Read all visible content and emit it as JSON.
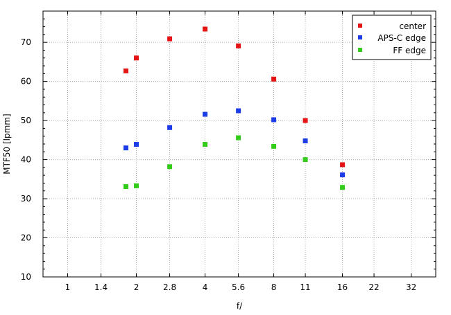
{
  "chart_data": {
    "type": "scatter",
    "xscale": "log",
    "xlabel": "f/",
    "ylabel": "MTF50 [lpmm]",
    "xlim": [
      0.78,
      41
    ],
    "ylim": [
      10,
      78
    ],
    "xticks": [
      {
        "value": 1,
        "label": "1"
      },
      {
        "value": 1.4,
        "label": "1.4"
      },
      {
        "value": 2,
        "label": "2"
      },
      {
        "value": 2.8,
        "label": "2.8"
      },
      {
        "value": 4,
        "label": "4"
      },
      {
        "value": 5.6,
        "label": "5.6"
      },
      {
        "value": 8,
        "label": "8"
      },
      {
        "value": 11,
        "label": "11"
      },
      {
        "value": 16,
        "label": "16"
      },
      {
        "value": 22,
        "label": "22"
      },
      {
        "value": 32,
        "label": "32"
      }
    ],
    "yticks": [
      10,
      20,
      30,
      40,
      50,
      60,
      70
    ],
    "grid": true,
    "legend_position": "top-right",
    "series": [
      {
        "name": "center",
        "color": "#e41414",
        "x": [
          1.8,
          2,
          2.8,
          4,
          5.6,
          8,
          11,
          16
        ],
        "y": [
          62.7,
          66.0,
          70.9,
          73.4,
          69.1,
          60.6,
          50.0,
          38.7
        ]
      },
      {
        "name": "APS-C edge",
        "color": "#1c3ce8",
        "x": [
          1.8,
          2,
          2.8,
          4,
          5.6,
          8,
          11,
          16
        ],
        "y": [
          43.0,
          43.9,
          48.2,
          51.6,
          52.5,
          50.2,
          44.8,
          36.1
        ]
      },
      {
        "name": "FF edge",
        "color": "#33cc1a",
        "x": [
          1.8,
          2,
          2.8,
          4,
          5.6,
          8,
          11,
          16
        ],
        "y": [
          33.1,
          33.3,
          38.2,
          43.9,
          45.6,
          43.4,
          40.0,
          32.9
        ]
      }
    ]
  }
}
